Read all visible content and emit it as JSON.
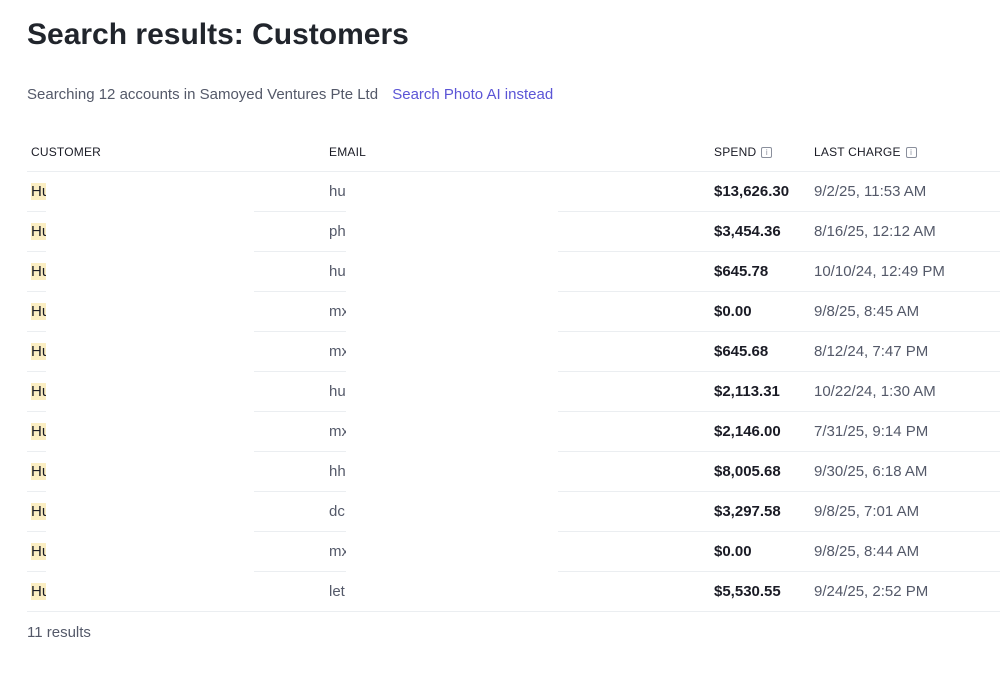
{
  "title": "Search results: Customers",
  "subtitle": "Searching 12 accounts in Samoyed Ventures Pte Ltd",
  "alt_search_link": "Search Photo AI instead",
  "columns": {
    "customer": "CUSTOMER",
    "email": "EMAIL",
    "spend": "SPEND",
    "last_charge": "LAST CHARGE"
  },
  "rows": [
    {
      "customer": "Hu",
      "email": "hu",
      "spend": "$13,626.30",
      "last_charge": "9/2/25, 11:53 AM"
    },
    {
      "customer": "Hu",
      "email": "ph",
      "spend": "$3,454.36",
      "last_charge": "8/16/25, 12:12 AM"
    },
    {
      "customer": "Hu",
      "email": "hu",
      "spend": "$645.78",
      "last_charge": "10/10/24, 12:49 PM"
    },
    {
      "customer": "Hu",
      "email": "mx",
      "spend": "$0.00",
      "last_charge": "9/8/25, 8:45 AM"
    },
    {
      "customer": "Hu",
      "email": "mx",
      "spend": "$645.68",
      "last_charge": "8/12/24, 7:47 PM"
    },
    {
      "customer": "Hu",
      "email": "hu",
      "spend": "$2,113.31",
      "last_charge": "10/22/24, 1:30 AM"
    },
    {
      "customer": "Hu",
      "email": "mx",
      "spend": "$2,146.00",
      "last_charge": "7/31/25, 9:14 PM"
    },
    {
      "customer": "Hu",
      "email": "hh",
      "spend": "$8,005.68",
      "last_charge": "9/30/25, 6:18 AM"
    },
    {
      "customer": "Hu",
      "email": "dc",
      "spend": "$3,297.58",
      "last_charge": "9/8/25, 7:01 AM"
    },
    {
      "customer": "Hu",
      "email": "mx",
      "spend": "$0.00",
      "last_charge": "9/8/25, 8:44 AM"
    },
    {
      "customer": "Hu",
      "email": "let",
      "spend": "$5,530.55",
      "last_charge": "9/24/25, 2:52 PM"
    }
  ],
  "results_count": "11 results",
  "info_glyph": "i",
  "colors": {
    "link": "#5b55d6",
    "highlight": "#fbeec2"
  }
}
